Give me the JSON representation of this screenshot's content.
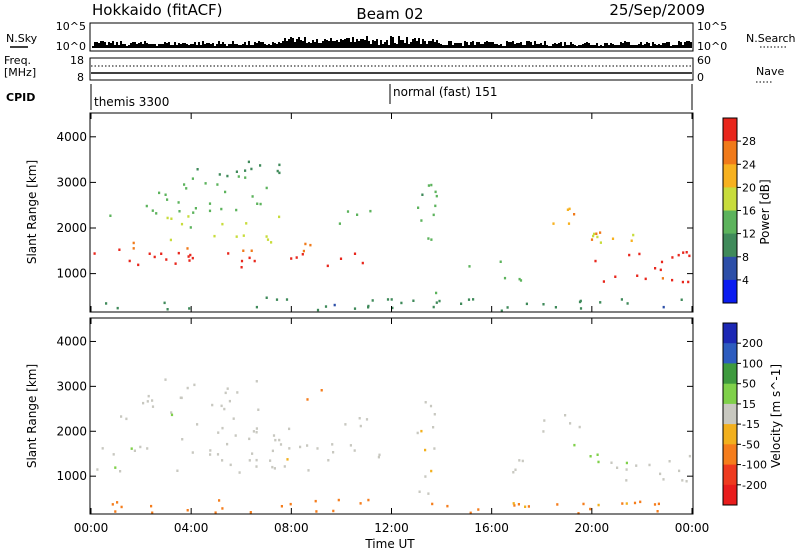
{
  "header": {
    "title_left": "Hokkaido (fitACF)",
    "title_center": "Beam 02",
    "title_right": "25/Sep/2009"
  },
  "panels": {
    "nsky_label": "N.Sky",
    "nsky_ticks": [
      "10^5",
      "10^0"
    ],
    "nsearch_label": "N.Search",
    "freq_label": "Freq.",
    "freq_unit": "[MHz]",
    "freq_ticks": [
      "18",
      "8"
    ],
    "nave_label": "Nave",
    "nave_ticks": [
      "60",
      "0"
    ],
    "cpid_label": "CPID",
    "cpid_1": "themis 3300",
    "cpid_2": "normal (fast) 151"
  },
  "chart_data": [
    {
      "type": "heatmap",
      "title": "",
      "xlabel": "Time UT",
      "ylabel": "Slant Range [km]",
      "x_ticks": [
        "00:00",
        "04:00",
        "08:00",
        "12:00",
        "16:00",
        "20:00",
        "00:00"
      ],
      "xlim_hours": [
        0,
        24
      ],
      "y_ticks": [
        1000,
        2000,
        3000,
        4000
      ],
      "ylim": [
        180,
        4500
      ],
      "colorbar_label": "Power [dB]",
      "colorbar_ticks": [
        4,
        8,
        12,
        16,
        20,
        24,
        28
      ],
      "colors": [
        "#0a1cf0",
        "#2d4fa8",
        "#3f8a5a",
        "#5cb35c",
        "#c8dc3c",
        "#f7b11f",
        "#f07a1a",
        "#e8261c"
      ],
      "regions": [
        {
          "t0": 0.1,
          "t1": 11.5,
          "r0": 1100,
          "r1": 1500,
          "level": 28
        },
        {
          "t0": 1.0,
          "t1": 9.5,
          "r0": 1500,
          "r1": 1700,
          "level": 24
        },
        {
          "t0": 3.0,
          "t1": 7.5,
          "r0": 1700,
          "r1": 2300,
          "level": 14
        },
        {
          "t0": 2.0,
          "t1": 7.0,
          "r0": 2400,
          "r1": 3200,
          "level": 10
        },
        {
          "t0": 4.0,
          "t1": 7.5,
          "r0": 3200,
          "r1": 3700,
          "level": 8
        },
        {
          "t0": 0.2,
          "t1": 6.0,
          "r0": 2250,
          "r1": 2450,
          "level": 12
        },
        {
          "t0": 9.0,
          "t1": 11.5,
          "r0": 2100,
          "r1": 2400,
          "level": 10
        },
        {
          "t0": 13.0,
          "t1": 13.8,
          "r0": 600,
          "r1": 3300,
          "level": 10
        },
        {
          "t0": 16.3,
          "t1": 17.4,
          "r0": 800,
          "r1": 1400,
          "level": 12
        },
        {
          "t0": 14.5,
          "t1": 15.3,
          "r0": 900,
          "r1": 1200,
          "level": 10
        },
        {
          "t0": 18.0,
          "t1": 19.7,
          "r0": 2000,
          "r1": 2550,
          "level": 20
        },
        {
          "t0": 19.7,
          "t1": 24.0,
          "r0": 800,
          "r1": 1600,
          "level": 28
        },
        {
          "t0": 20.0,
          "t1": 24.0,
          "r0": 1600,
          "r1": 1900,
          "level": 16
        },
        {
          "t0": 19.0,
          "t1": 20.5,
          "r0": 1600,
          "r1": 2000,
          "level": 22
        },
        {
          "t0": 0.0,
          "t1": 24.0,
          "r0": 200,
          "r1": 500,
          "level": 6
        }
      ]
    },
    {
      "type": "heatmap",
      "title": "",
      "xlabel": "Time UT",
      "ylabel": "Slant Range [km]",
      "x_ticks": [
        "00:00",
        "04:00",
        "08:00",
        "12:00",
        "16:00",
        "20:00",
        "00:00"
      ],
      "xlim_hours": [
        0,
        24
      ],
      "y_ticks": [
        1000,
        2000,
        3000,
        4000
      ],
      "ylim": [
        180,
        4500
      ],
      "colorbar_label": "Velocity [m s^-1]",
      "colorbar_ticks": [
        200,
        100,
        50,
        15,
        -15,
        -50,
        -100,
        -200
      ],
      "colors": [
        "#1c28b4",
        "#2d5cbf",
        "#3e9a3e",
        "#7fd04a",
        "#c8c8c0",
        "#f2b01e",
        "#f57d1c",
        "#ee3a1f",
        "#e81c1c"
      ],
      "regions": [
        {
          "t0": 0.1,
          "t1": 11.5,
          "r0": 1100,
          "r1": 1750,
          "level": 0
        },
        {
          "t0": 3.0,
          "t1": 8.0,
          "r0": 1750,
          "r1": 2200,
          "level": 0
        },
        {
          "t0": 2.0,
          "t1": 7.0,
          "r0": 2500,
          "r1": 3200,
          "level": 0
        },
        {
          "t0": 0.2,
          "t1": 6.0,
          "r0": 2300,
          "r1": 2450,
          "level": 0
        },
        {
          "t0": 9.0,
          "t1": 11.5,
          "r0": 2100,
          "r1": 2400,
          "level": 0
        },
        {
          "t0": 8.6,
          "t1": 9.3,
          "r0": 2600,
          "r1": 3000,
          "level": -50
        },
        {
          "t0": 13.0,
          "t1": 13.8,
          "r0": 600,
          "r1": 3300,
          "level": 0
        },
        {
          "t0": 16.3,
          "t1": 17.4,
          "r0": 800,
          "r1": 1400,
          "level": 0
        },
        {
          "t0": 18.0,
          "t1": 19.5,
          "r0": 2000,
          "r1": 2600,
          "level": 0
        },
        {
          "t0": 19.2,
          "t1": 20.8,
          "r0": 1300,
          "r1": 1800,
          "level": 30
        },
        {
          "t0": 20.5,
          "t1": 24.0,
          "r0": 900,
          "r1": 1600,
          "level": 0
        },
        {
          "t0": 0.0,
          "t1": 24.0,
          "r0": 200,
          "r1": 500,
          "level": -50
        }
      ]
    }
  ]
}
